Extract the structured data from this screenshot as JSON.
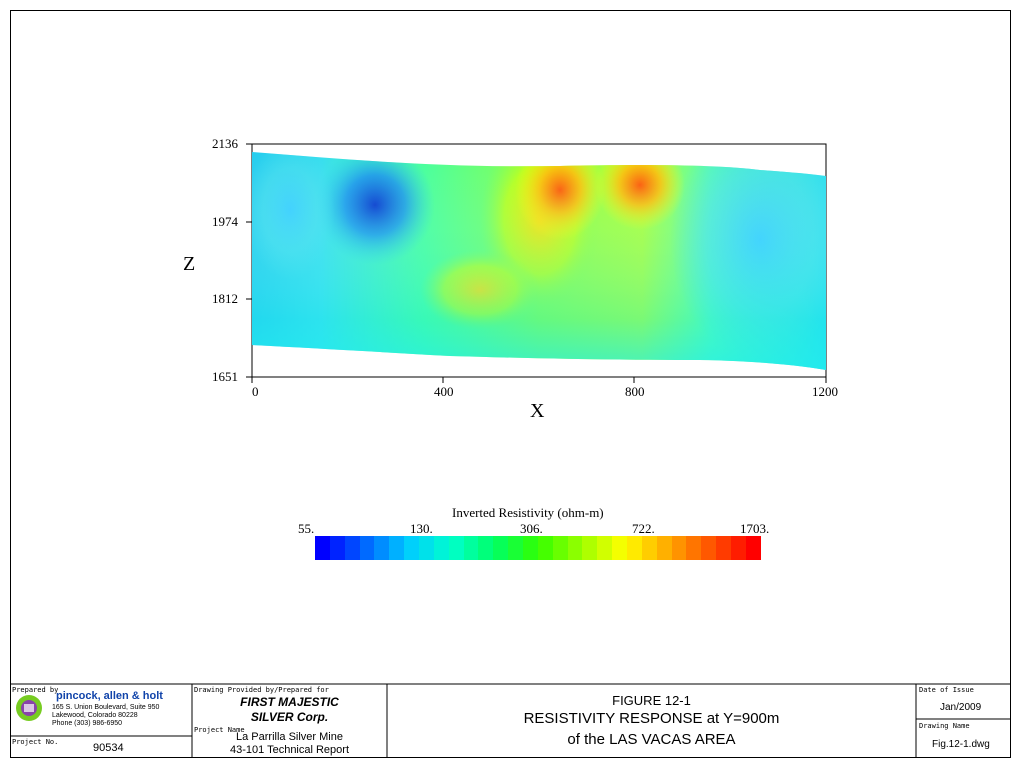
{
  "section": {
    "z_axis_label": "Z",
    "x_axis_label": "X",
    "z_ticks": [
      "2136",
      "1974",
      "1812",
      "1651"
    ],
    "x_ticks": [
      "0",
      "400",
      "800",
      "1200"
    ],
    "z_range": [
      1651,
      2136
    ],
    "x_range": [
      0,
      1200
    ]
  },
  "colorbar": {
    "title": "Inverted Resistivity (ohm-m)",
    "tick_labels": [
      "55.",
      "130.",
      "306.",
      "722.",
      "1703."
    ],
    "stops": [
      "#0000ff",
      "#0066ff",
      "#00ccff",
      "#00ffcc",
      "#00ff66",
      "#33ff00",
      "#99ff00",
      "#ffff00",
      "#ffaa00",
      "#ff5500",
      "#ff0000"
    ]
  },
  "title_block": {
    "prepared_by_label": "Prepared by",
    "company_name": "pincock, allen & holt",
    "company_address1": "165 S. Union Boulevard, Suite 950",
    "company_address2": "Lakewood, Colorado 80228",
    "company_phone": "Phone (303) 986-6950",
    "project_no_label": "Project No.",
    "project_no": "90534",
    "drawing_provided_label": "Drawing Provided by/Prepared for",
    "client_line1": "FIRST MAJESTIC",
    "client_line2": "SILVER Corp.",
    "project_name_label": "Project Name",
    "project_name1": "La Parrilla Silver Mine",
    "project_name2": "43-101 Technical Report",
    "figure_line1": "FIGURE 12-1",
    "figure_line2": "RESISTIVITY RESPONSE at Y=900m",
    "figure_line3": "of the LAS VACAS AREA",
    "date_label": "Date of Issue",
    "date": "Jan/2009",
    "drawing_name_label": "Drawing Name",
    "drawing_name": "Fig.12-1.dwg"
  }
}
